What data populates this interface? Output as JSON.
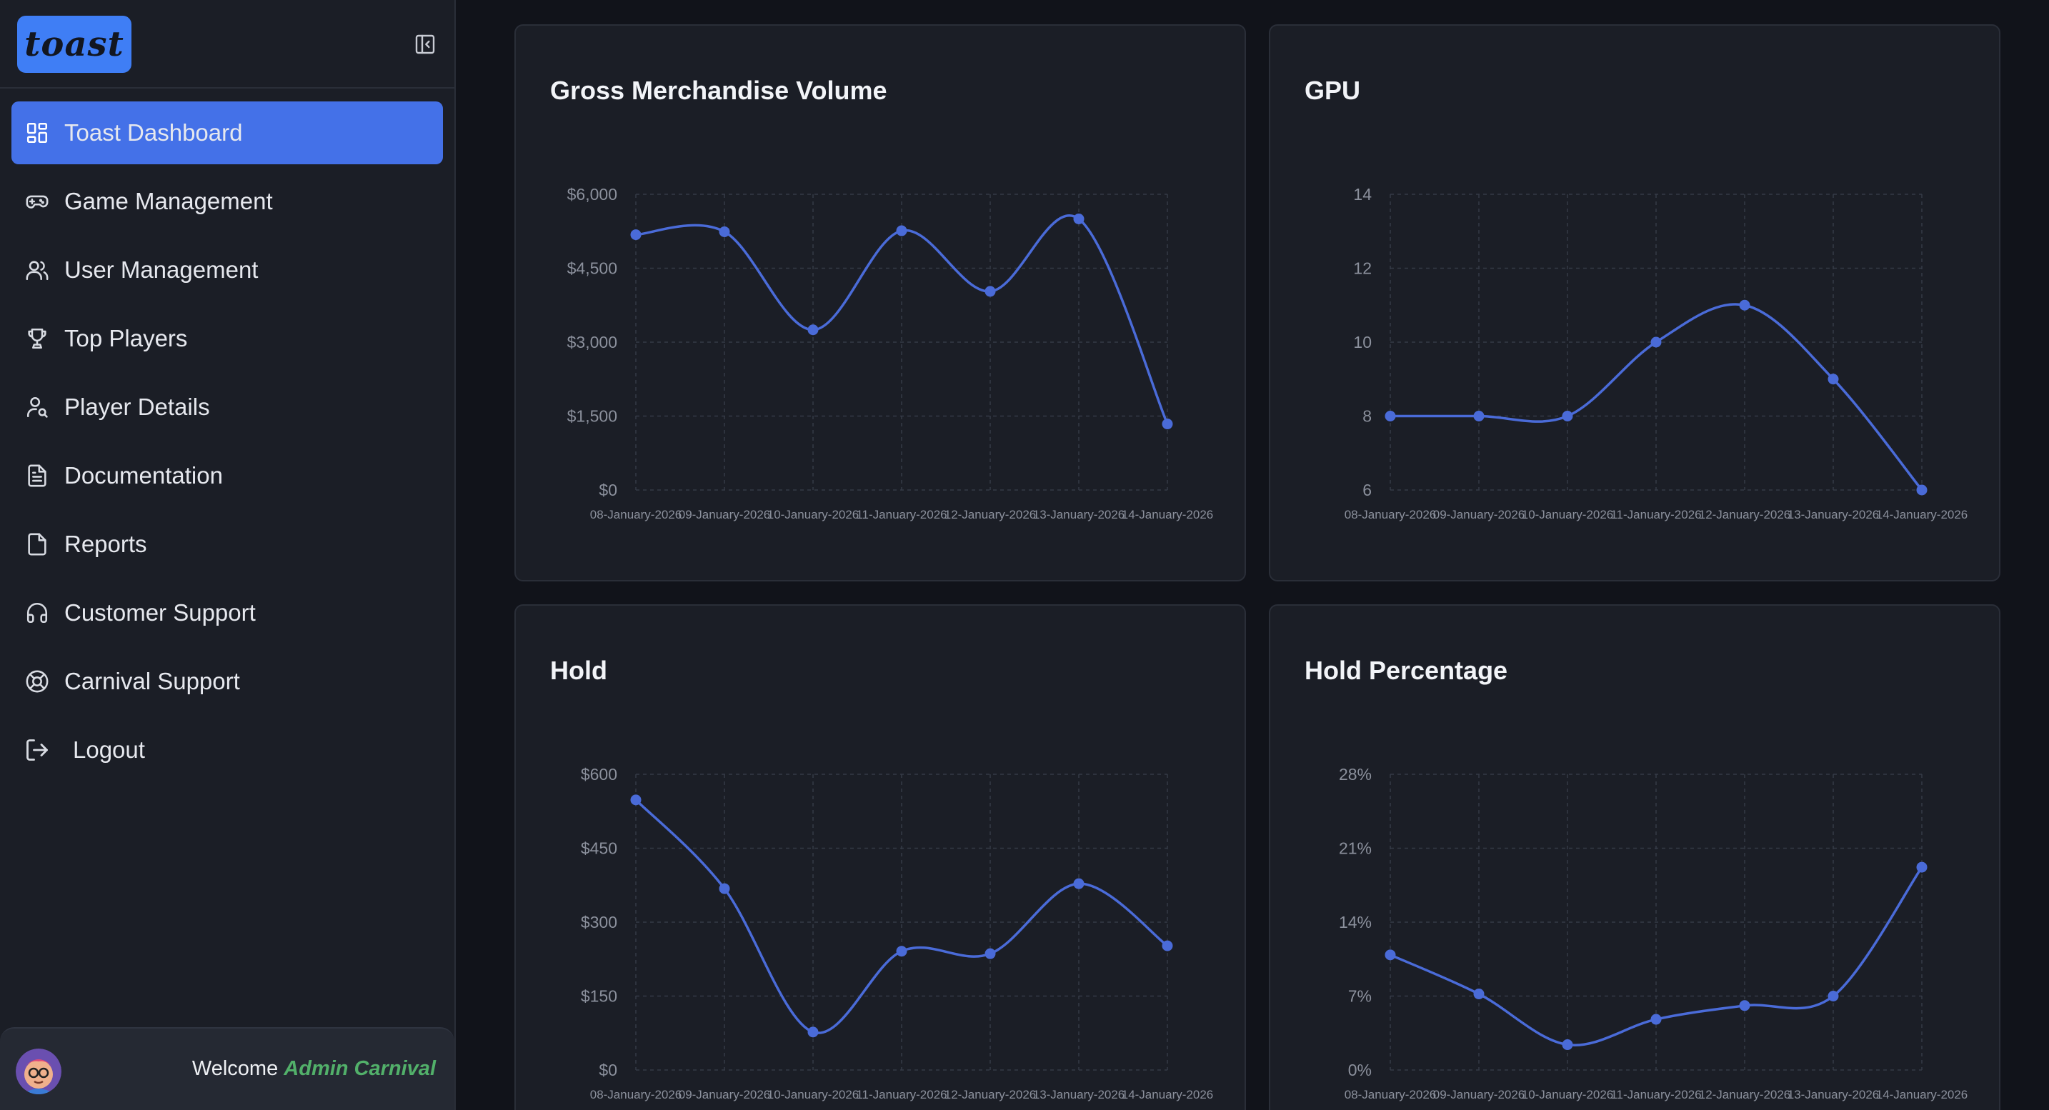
{
  "sidebar": {
    "logo_text": "toast",
    "items": [
      {
        "label": "Toast Dashboard",
        "icon": "dashboard-grid-icon",
        "active": true
      },
      {
        "label": "Game Management",
        "icon": "gamepad-icon"
      },
      {
        "label": "User Management",
        "icon": "users-icon"
      },
      {
        "label": "Top Players",
        "icon": "trophy-icon"
      },
      {
        "label": "Player Details",
        "icon": "user-search-icon"
      },
      {
        "label": "Documentation",
        "icon": "document-icon"
      },
      {
        "label": "Reports",
        "icon": "file-icon"
      },
      {
        "label": "Customer Support",
        "icon": "headset-icon"
      },
      {
        "label": "Carnival Support",
        "icon": "lifebuoy-icon"
      },
      {
        "label": "Logout",
        "icon": "logout-icon"
      }
    ],
    "footer": {
      "welcome": "Welcome",
      "user": "Admin Carnival"
    }
  },
  "colors": {
    "accent": "#4471e8",
    "line": "#4a6bd8",
    "user_name": "#52b06a"
  },
  "chart_data": [
    {
      "type": "line",
      "title": "Gross Merchandise Volume",
      "x": [
        "08-January-2026",
        "09-January-2026",
        "10-January-2026",
        "11-January-2026",
        "12-January-2026",
        "13-January-2026",
        "14-January-2026"
      ],
      "x_tick_labels": [
        "08-January-2026",
        "09-January-2026",
        "10-January-2026",
        "11-January-2026",
        "12-January-2026",
        "13-January-2026",
        "14-January-2026"
      ],
      "values": [
        5180,
        5240,
        3250,
        5260,
        4030,
        5500,
        1340
      ],
      "yticks": [
        "$0",
        "$1,500",
        "$3,000",
        "$4,500",
        "$6,000"
      ],
      "ylim": [
        0,
        6000
      ],
      "grid": true
    },
    {
      "type": "line",
      "title": "GPU",
      "x": [
        "08-January-2026",
        "09-January-2026",
        "10-January-2026",
        "11-January-2026",
        "12-January-2026",
        "13-January-2026",
        "14-January-2026"
      ],
      "x_tick_labels": [
        "08-January-2026",
        "09-January-2026",
        "10-January-2026",
        "11-January-2026",
        "12-January-2026",
        "13-January-2026",
        "14-January-2026"
      ],
      "values": [
        8,
        8,
        8,
        10,
        11,
        9,
        6
      ],
      "yticks": [
        "6",
        "8",
        "10",
        "12",
        "14"
      ],
      "ylim": [
        6,
        14
      ],
      "grid": true
    },
    {
      "type": "line",
      "title": "Hold",
      "x": [
        "08-January-2026",
        "09-January-2026",
        "10-January-2026",
        "11-January-2026",
        "12-January-2026",
        "13-January-2026",
        "14-January-2026"
      ],
      "x_tick_labels": [
        "08-January-2026",
        "09-January-2026",
        "10-January-2026",
        "11-January-2026",
        "12-January-2026",
        "13-January-2026",
        "14-January-2026"
      ],
      "values": [
        548,
        368,
        77,
        241,
        236,
        378,
        252
      ],
      "yticks": [
        "$0",
        "$150",
        "$300",
        "$450",
        "$600"
      ],
      "ylim": [
        0,
        600
      ],
      "grid": true
    },
    {
      "type": "line",
      "title": "Hold Percentage",
      "x": [
        "08-January-2026",
        "09-January-2026",
        "10-January-2026",
        "11-January-2026",
        "12-January-2026",
        "13-January-2026",
        "14-January-2026"
      ],
      "x_tick_labels": [
        "08-January-2026",
        "09-January-2026",
        "10-January-2026",
        "11-January-2026",
        "12-January-2026",
        "13-January-2026",
        "14-January-2026"
      ],
      "values": [
        10.9,
        7.2,
        2.4,
        4.8,
        6.1,
        7.0,
        19.2
      ],
      "yticks": [
        "0%",
        "7%",
        "14%",
        "21%",
        "28%"
      ],
      "ylim": [
        0,
        28
      ],
      "grid": true
    }
  ]
}
